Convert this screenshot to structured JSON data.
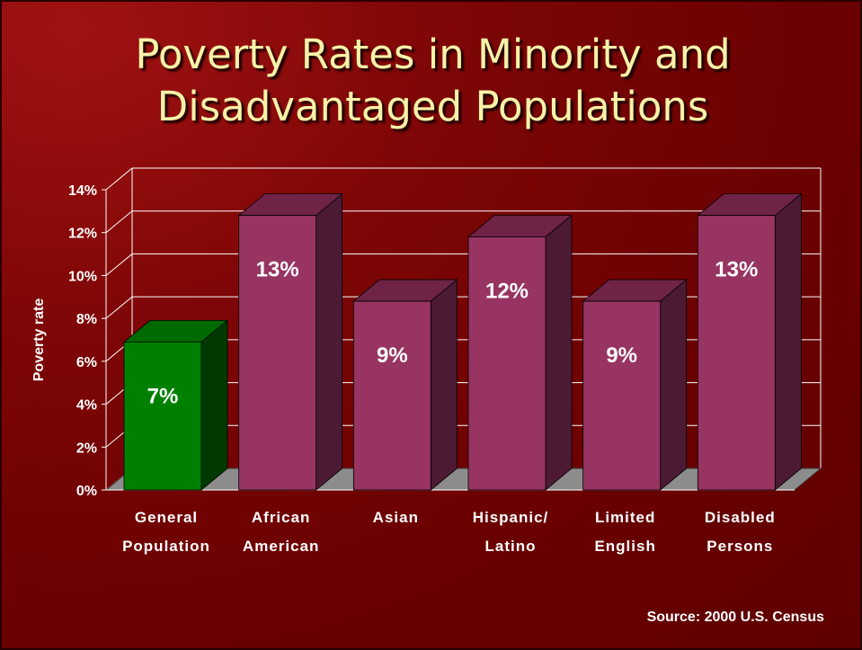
{
  "title_lines": [
    "Poverty Rates in Minority and",
    "Disadvantaged Populations"
  ],
  "source": "Source: 2000 U.S. Census",
  "chart_data": {
    "type": "bar",
    "title": "Poverty Rates in Minority and Disadvantaged Populations",
    "ylabel": "Poverty rate",
    "xlabel": "",
    "ylim": [
      0,
      14
    ],
    "yticks": [
      0,
      2,
      4,
      6,
      8,
      10,
      12,
      14
    ],
    "ytick_labels": [
      "0%",
      "2%",
      "4%",
      "6%",
      "8%",
      "10%",
      "12%",
      "14%"
    ],
    "grid": true,
    "categories": [
      [
        "General",
        "Population"
      ],
      [
        "African",
        "American"
      ],
      [
        "Asian"
      ],
      [
        "Hispanic/",
        "Latino"
      ],
      [
        "Limited",
        "English"
      ],
      [
        "Disabled",
        "Persons"
      ]
    ],
    "values": [
      6.9,
      12.8,
      8.8,
      11.8,
      8.8,
      12.8
    ],
    "data_labels": [
      "7%",
      "13%",
      "9%",
      "12%",
      "9%",
      "13%"
    ],
    "colors": {
      "highlight_front": "#008000",
      "highlight_side": "#003a00",
      "highlight_top": "#006a00",
      "bar_front": "#973462",
      "bar_side": "#4d1a33",
      "bar_top": "#6f2346",
      "floor": "#8c8c8c",
      "gridline": "#ffffff"
    }
  }
}
